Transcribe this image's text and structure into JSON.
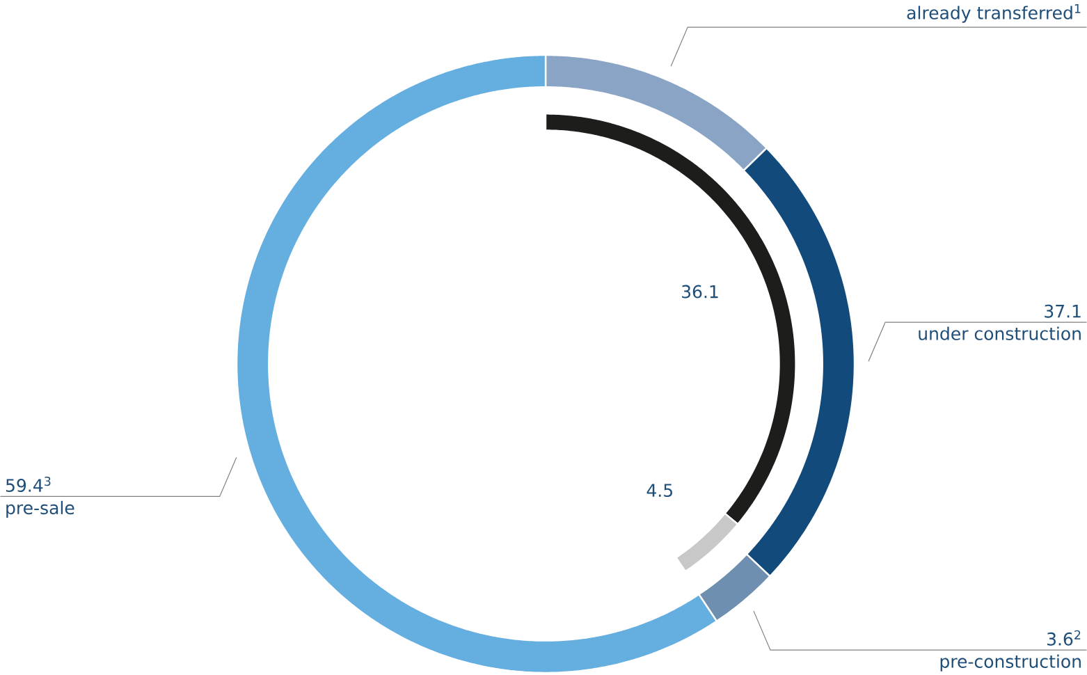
{
  "chart_data": {
    "type": "donut",
    "categories": [
      "already transferred$^{1}$",
      "under construction",
      "pre-construction",
      "pre-sale"
    ],
    "series": [
      {
        "values": [
          12.7,
          24.4,
          3.6,
          59.4
        ],
        "colors": [
          "#8aa4c6",
          "#124a7c",
          "#6f8fb0",
          "#65aee0"
        ],
        "value_labels": [
          null,
          null,
          "3.6$^{2}$",
          "59.4$^{3}$"
        ]
      },
      {
        "values": [
          36.1,
          4.5,
          null,
          null
        ],
        "colors": [
          "#1d1d1b",
          "#c8c8c8",
          null,
          null
        ],
        "data_labels": true
      }
    ],
    "annotations": [
      {
        "text": "37.1",
        "x": "under construction"
      }
    ]
  }
}
